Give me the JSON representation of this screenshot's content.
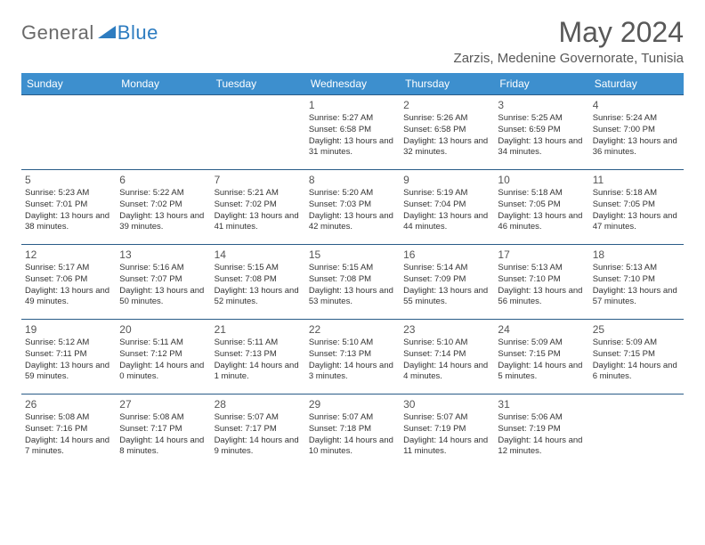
{
  "logo": {
    "text1": "General",
    "text2": "Blue"
  },
  "title": "May 2024",
  "location": "Zarzis, Medenine Governorate, Tunisia",
  "colors": {
    "header_bg": "#3d8fce",
    "header_text": "#ffffff",
    "title_text": "#585858",
    "logo_gray": "#6a6a6a",
    "logo_blue": "#2d7cc0",
    "cell_border": "#2a5c88",
    "day_num": "#555555",
    "info_text": "#333333",
    "background": "#ffffff"
  },
  "day_headers": [
    "Sunday",
    "Monday",
    "Tuesday",
    "Wednesday",
    "Thursday",
    "Friday",
    "Saturday"
  ],
  "weeks": [
    [
      null,
      null,
      null,
      {
        "n": "1",
        "sr": "5:27 AM",
        "ss": "6:58 PM",
        "dl": "13 hours and 31 minutes."
      },
      {
        "n": "2",
        "sr": "5:26 AM",
        "ss": "6:58 PM",
        "dl": "13 hours and 32 minutes."
      },
      {
        "n": "3",
        "sr": "5:25 AM",
        "ss": "6:59 PM",
        "dl": "13 hours and 34 minutes."
      },
      {
        "n": "4",
        "sr": "5:24 AM",
        "ss": "7:00 PM",
        "dl": "13 hours and 36 minutes."
      }
    ],
    [
      {
        "n": "5",
        "sr": "5:23 AM",
        "ss": "7:01 PM",
        "dl": "13 hours and 38 minutes."
      },
      {
        "n": "6",
        "sr": "5:22 AM",
        "ss": "7:02 PM",
        "dl": "13 hours and 39 minutes."
      },
      {
        "n": "7",
        "sr": "5:21 AM",
        "ss": "7:02 PM",
        "dl": "13 hours and 41 minutes."
      },
      {
        "n": "8",
        "sr": "5:20 AM",
        "ss": "7:03 PM",
        "dl": "13 hours and 42 minutes."
      },
      {
        "n": "9",
        "sr": "5:19 AM",
        "ss": "7:04 PM",
        "dl": "13 hours and 44 minutes."
      },
      {
        "n": "10",
        "sr": "5:18 AM",
        "ss": "7:05 PM",
        "dl": "13 hours and 46 minutes."
      },
      {
        "n": "11",
        "sr": "5:18 AM",
        "ss": "7:05 PM",
        "dl": "13 hours and 47 minutes."
      }
    ],
    [
      {
        "n": "12",
        "sr": "5:17 AM",
        "ss": "7:06 PM",
        "dl": "13 hours and 49 minutes."
      },
      {
        "n": "13",
        "sr": "5:16 AM",
        "ss": "7:07 PM",
        "dl": "13 hours and 50 minutes."
      },
      {
        "n": "14",
        "sr": "5:15 AM",
        "ss": "7:08 PM",
        "dl": "13 hours and 52 minutes."
      },
      {
        "n": "15",
        "sr": "5:15 AM",
        "ss": "7:08 PM",
        "dl": "13 hours and 53 minutes."
      },
      {
        "n": "16",
        "sr": "5:14 AM",
        "ss": "7:09 PM",
        "dl": "13 hours and 55 minutes."
      },
      {
        "n": "17",
        "sr": "5:13 AM",
        "ss": "7:10 PM",
        "dl": "13 hours and 56 minutes."
      },
      {
        "n": "18",
        "sr": "5:13 AM",
        "ss": "7:10 PM",
        "dl": "13 hours and 57 minutes."
      }
    ],
    [
      {
        "n": "19",
        "sr": "5:12 AM",
        "ss": "7:11 PM",
        "dl": "13 hours and 59 minutes."
      },
      {
        "n": "20",
        "sr": "5:11 AM",
        "ss": "7:12 PM",
        "dl": "14 hours and 0 minutes."
      },
      {
        "n": "21",
        "sr": "5:11 AM",
        "ss": "7:13 PM",
        "dl": "14 hours and 1 minute."
      },
      {
        "n": "22",
        "sr": "5:10 AM",
        "ss": "7:13 PM",
        "dl": "14 hours and 3 minutes."
      },
      {
        "n": "23",
        "sr": "5:10 AM",
        "ss": "7:14 PM",
        "dl": "14 hours and 4 minutes."
      },
      {
        "n": "24",
        "sr": "5:09 AM",
        "ss": "7:15 PM",
        "dl": "14 hours and 5 minutes."
      },
      {
        "n": "25",
        "sr": "5:09 AM",
        "ss": "7:15 PM",
        "dl": "14 hours and 6 minutes."
      }
    ],
    [
      {
        "n": "26",
        "sr": "5:08 AM",
        "ss": "7:16 PM",
        "dl": "14 hours and 7 minutes."
      },
      {
        "n": "27",
        "sr": "5:08 AM",
        "ss": "7:17 PM",
        "dl": "14 hours and 8 minutes."
      },
      {
        "n": "28",
        "sr": "5:07 AM",
        "ss": "7:17 PM",
        "dl": "14 hours and 9 minutes."
      },
      {
        "n": "29",
        "sr": "5:07 AM",
        "ss": "7:18 PM",
        "dl": "14 hours and 10 minutes."
      },
      {
        "n": "30",
        "sr": "5:07 AM",
        "ss": "7:19 PM",
        "dl": "14 hours and 11 minutes."
      },
      {
        "n": "31",
        "sr": "5:06 AM",
        "ss": "7:19 PM",
        "dl": "14 hours and 12 minutes."
      },
      null
    ]
  ],
  "labels": {
    "sunrise": "Sunrise:",
    "sunset": "Sunset:",
    "daylight": "Daylight:"
  }
}
